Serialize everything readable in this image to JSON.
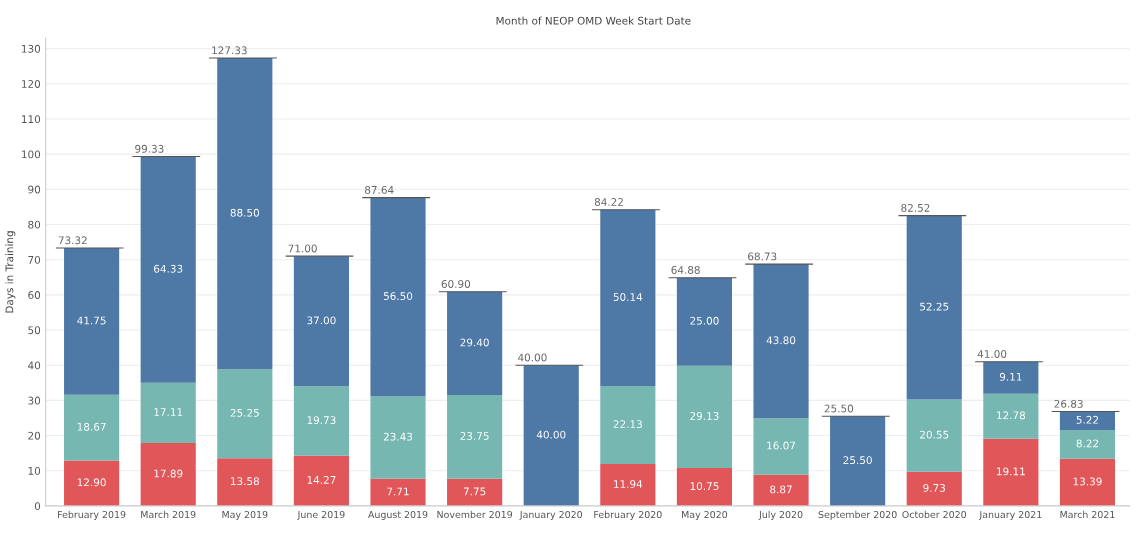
{
  "chart_data": {
    "type": "bar",
    "stacked": true,
    "title": "Month of NEOP OMD Week Start Date",
    "ylabel": "Days in Training",
    "categories": [
      "February 2019",
      "March 2019",
      "May 2019",
      "June 2019",
      "August 2019",
      "November 2019",
      "January 2020",
      "February 2020",
      "May 2020",
      "July 2020",
      "September 2020",
      "October 2020",
      "January 2021",
      "March 2021"
    ],
    "series": [
      {
        "color": "#e15759",
        "values": [
          12.9,
          17.89,
          13.58,
          14.27,
          7.71,
          7.75,
          null,
          11.94,
          10.75,
          8.87,
          null,
          9.73,
          19.11,
          13.39
        ],
        "value_labels": [
          "12.90",
          "17.89",
          "13.58",
          "14.27",
          "7.71",
          "7.75",
          null,
          "11.94",
          "10.75",
          "8.87",
          null,
          "9.73",
          "19.11",
          "13.39"
        ]
      },
      {
        "color": "#76b7b2",
        "values": [
          18.67,
          17.11,
          25.25,
          19.73,
          23.43,
          23.75,
          null,
          22.13,
          29.13,
          16.07,
          null,
          20.55,
          12.78,
          8.22
        ],
        "value_labels": [
          "18.67",
          "17.11",
          "25.25",
          "19.73",
          "23.43",
          "23.75",
          null,
          "22.13",
          "29.13",
          "16.07",
          null,
          "20.55",
          "12.78",
          "8.22"
        ]
      },
      {
        "color": "#4e79a7",
        "values": [
          41.75,
          64.33,
          88.5,
          37.0,
          56.5,
          29.4,
          40.0,
          50.14,
          25.0,
          43.8,
          25.5,
          52.25,
          9.11,
          5.22
        ],
        "value_labels": [
          "41.75",
          "64.33",
          "88.50",
          "37.00",
          "56.50",
          "29.40",
          "40.00",
          "50.14",
          "25.00",
          "43.80",
          "25.50",
          "52.25",
          "9.11",
          "5.22"
        ]
      }
    ],
    "totals": [
      "73.32",
      "99.33",
      "127.33",
      "71.00",
      "87.64",
      "60.90",
      "40.00",
      "84.22",
      "64.88",
      "68.73",
      "25.50",
      "82.52",
      "41.00",
      "26.83"
    ],
    "ylim": [
      0,
      133
    ],
    "yticks": [
      0,
      10,
      20,
      30,
      40,
      50,
      60,
      70,
      80,
      90,
      100,
      110,
      120,
      130
    ],
    "grid": "y"
  }
}
